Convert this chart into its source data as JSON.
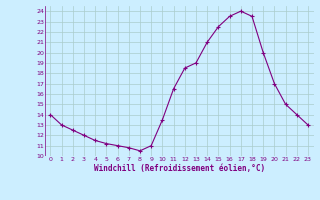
{
  "x": [
    0,
    1,
    2,
    3,
    4,
    5,
    6,
    7,
    8,
    9,
    10,
    11,
    12,
    13,
    14,
    15,
    16,
    17,
    18,
    19,
    20,
    21,
    22,
    23
  ],
  "y": [
    14,
    13,
    12.5,
    12,
    11.5,
    11.2,
    11,
    10.8,
    10.5,
    11,
    13.5,
    16.5,
    18.5,
    19,
    21,
    22.5,
    23.5,
    24,
    23.5,
    20,
    17,
    15,
    14,
    13
  ],
  "line_color": "#800080",
  "marker": "+",
  "bg_color": "#cceeff",
  "grid_color": "#aacccc",
  "xlabel": "Windchill (Refroidissement éolien,°C)",
  "xlabel_color": "#800080",
  "tick_color": "#800080",
  "ylim": [
    10,
    24.5
  ],
  "xlim": [
    -0.5,
    23.5
  ],
  "yticks": [
    10,
    11,
    12,
    13,
    14,
    15,
    16,
    17,
    18,
    19,
    20,
    21,
    22,
    23,
    24
  ],
  "xticks": [
    0,
    1,
    2,
    3,
    4,
    5,
    6,
    7,
    8,
    9,
    10,
    11,
    12,
    13,
    14,
    15,
    16,
    17,
    18,
    19,
    20,
    21,
    22,
    23
  ]
}
